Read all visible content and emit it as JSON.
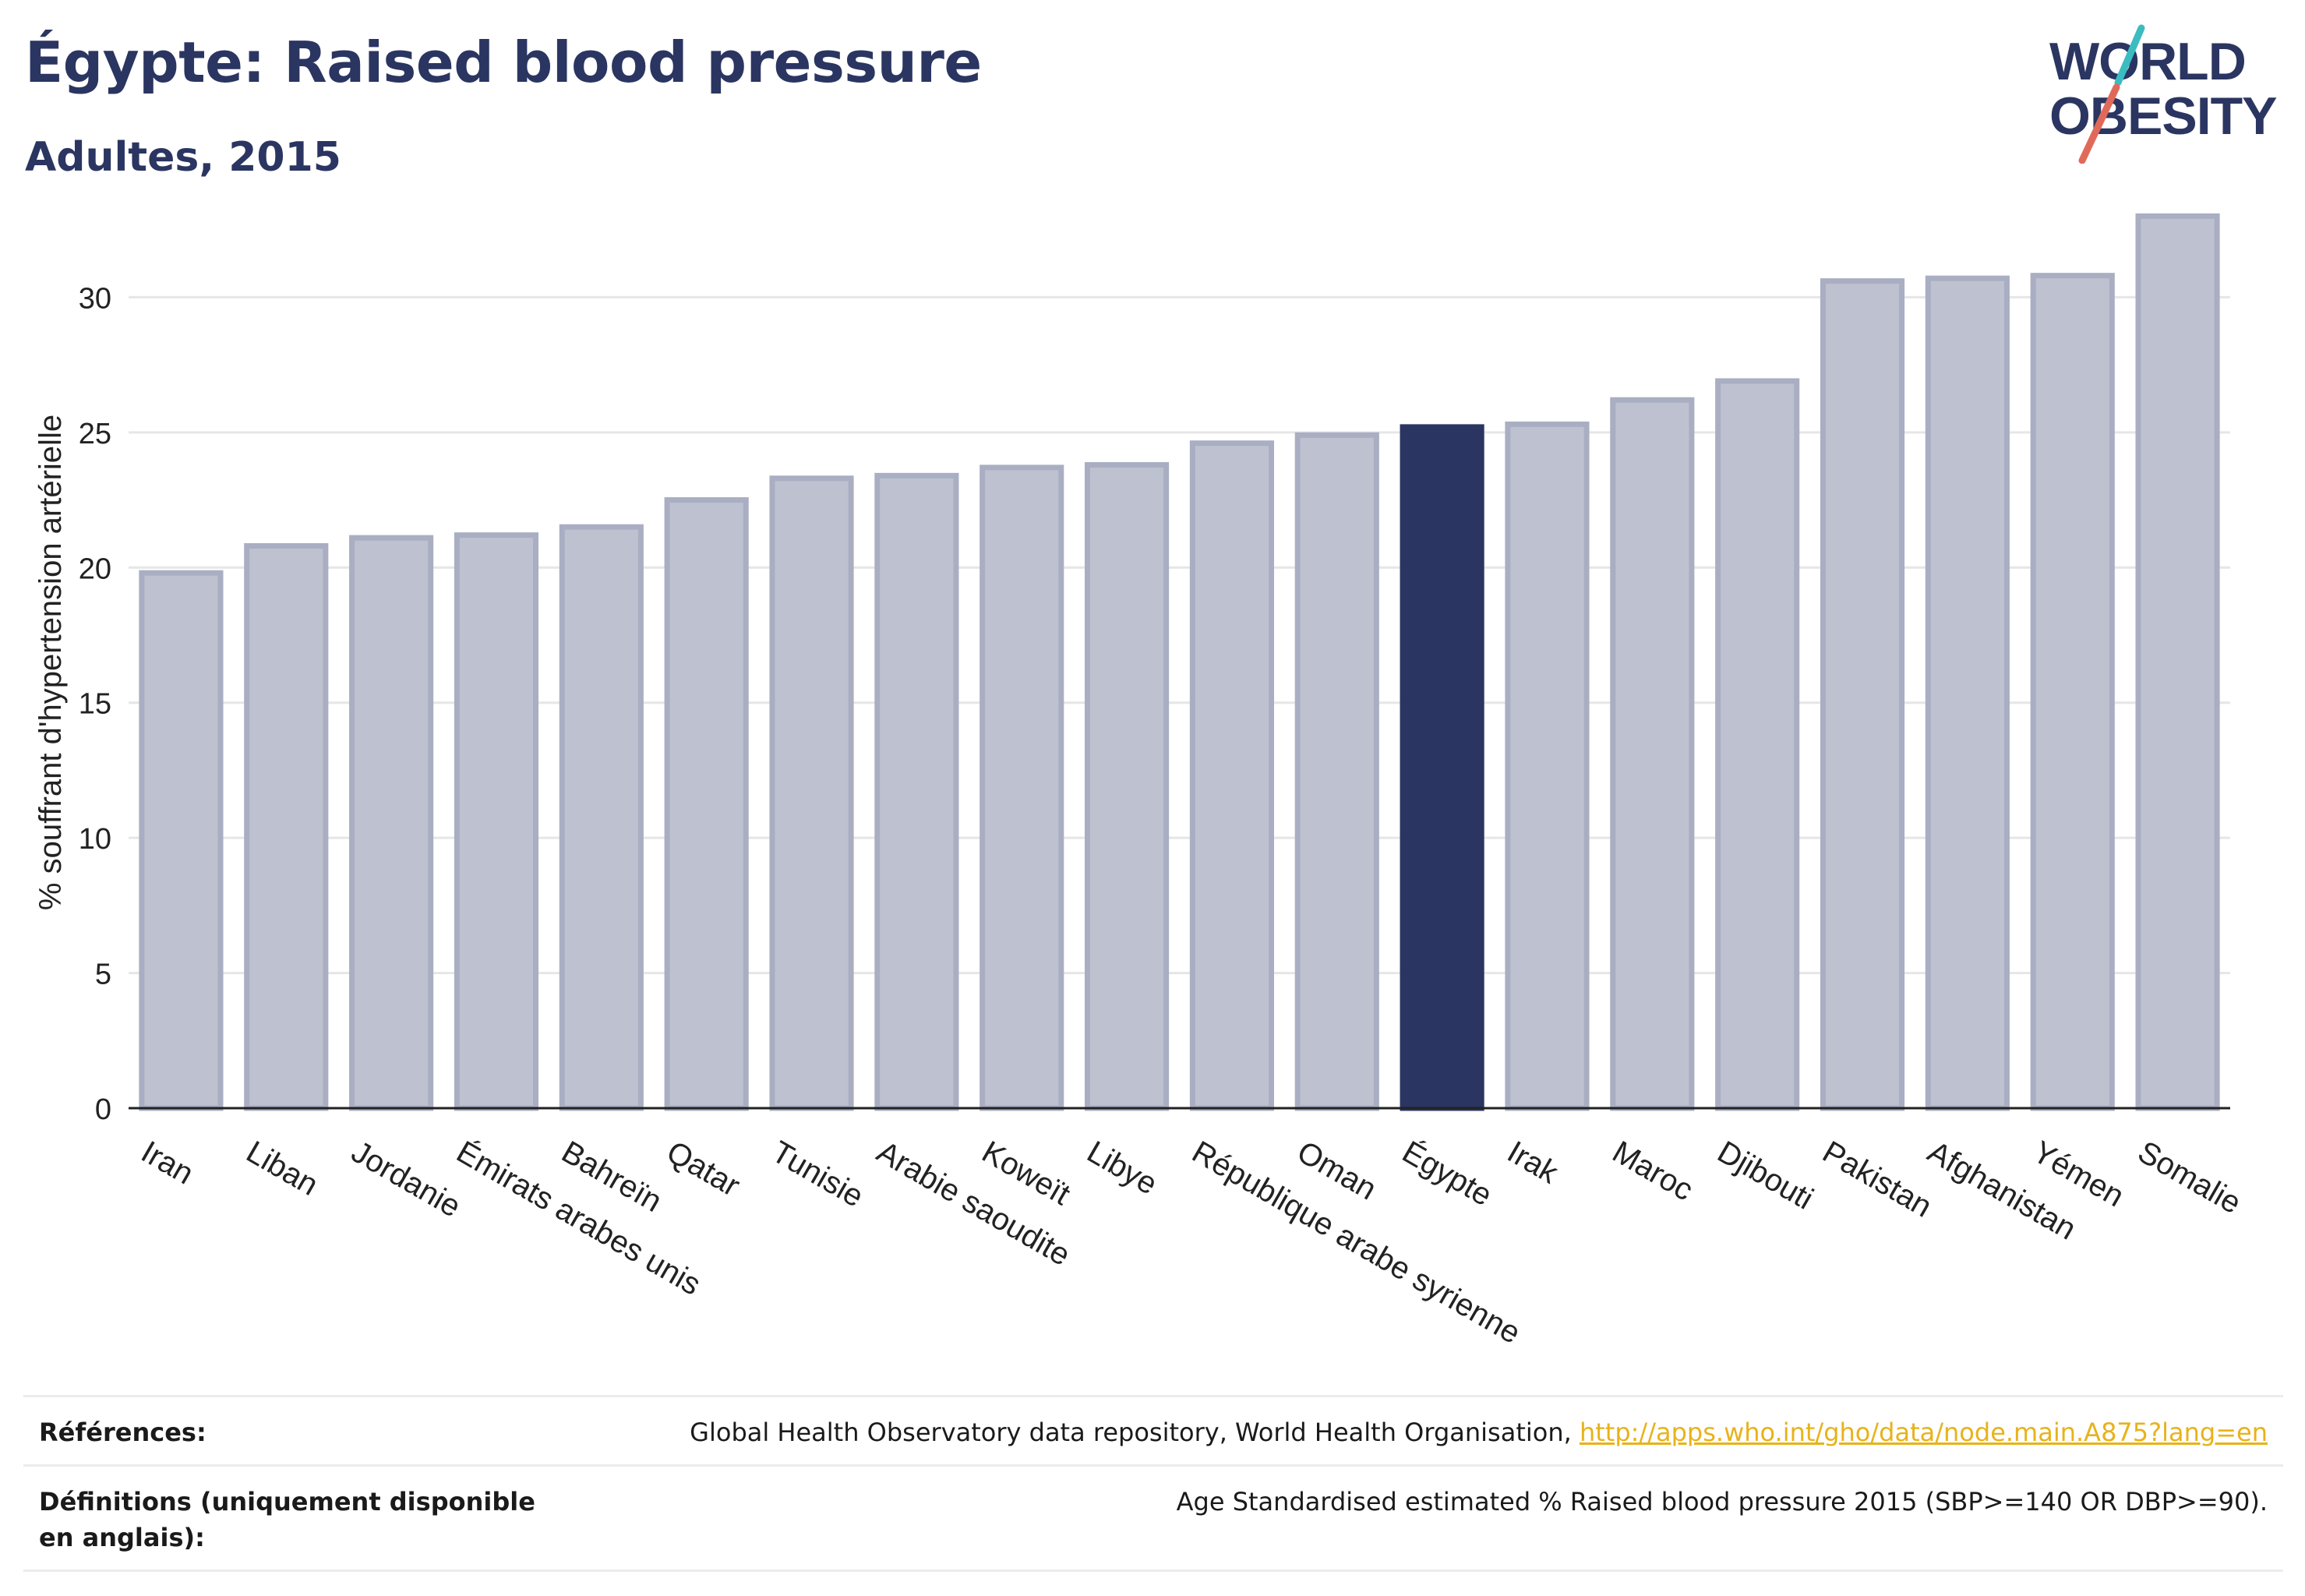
{
  "header": {
    "title": "Égypte: Raised blood pressure",
    "subtitle": "Adultes, 2015"
  },
  "logo": {
    "line1": "WORLD",
    "line2": "OBESITY",
    "colors": {
      "text": "#2b3561",
      "slash_red": "#e06a5a",
      "slash_teal": "#3bbcc0"
    }
  },
  "colors": {
    "bar": "#bec2d0",
    "bar_border": "#a9aec2",
    "highlight": "#2b3561",
    "grid": "#e6e6e6",
    "axis": "#222222"
  },
  "chart_data": {
    "type": "bar",
    "title": "Égypte: Raised blood pressure",
    "subtitle": "Adultes, 2015",
    "ylabel": "% souffrant d'hypertension artérielle",
    "xlabel": "",
    "ylim": [
      0,
      33.5
    ],
    "yticks": [
      0,
      5,
      10,
      15,
      20,
      25,
      30
    ],
    "grid": true,
    "highlight": "Égypte",
    "categories": [
      "Iran",
      "Liban",
      "Jordanie",
      "Émirats arabes unis",
      "Bahreïn",
      "Qatar",
      "Tunisie",
      "Arabie saoudite",
      "Koweït",
      "Libye",
      "République arabe syrienne",
      "Oman",
      "Égypte",
      "Irak",
      "Maroc",
      "Djibouti",
      "Pakistan",
      "Afghanistan",
      "Yémen",
      "Somalie"
    ],
    "values": [
      19.8,
      20.8,
      21.1,
      21.2,
      21.5,
      22.5,
      23.3,
      23.4,
      23.7,
      23.8,
      24.6,
      24.9,
      25.2,
      25.3,
      26.2,
      26.9,
      30.6,
      30.7,
      30.8,
      33.0
    ]
  },
  "references": [
    {
      "label": "Références:",
      "text": "Global Health Observatory data repository, World Health Organisation, ",
      "link": "http://apps.who.int/gho/data/node.main.A875?lang=en"
    },
    {
      "label": "Définitions (uniquement disponible en anglais):",
      "text": "Age Standardised estimated % Raised blood pressure 2015 (SBP>=140 OR DBP>=90).",
      "link": ""
    }
  ]
}
